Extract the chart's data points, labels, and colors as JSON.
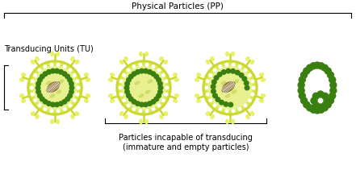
{
  "bg_color": "#ffffff",
  "title_pp": "Physical Particles (PP)",
  "title_tu": "Transducing Units (TU)",
  "label_incapable": "Particles incapable of transducing\n(immature and empty particles)",
  "color_envelope": "#ccd830",
  "color_envelope_inner": "#d8e850",
  "color_cytoplasm": "#e8f090",
  "color_capsid_dots": "#3a8010",
  "color_matrix_dots": "#ffffff",
  "color_rna": "#806020",
  "color_spike_body": "#ccd830",
  "color_spike_tip": "#e8f060",
  "color_bead": "#3a8010",
  "fig_width": 4.41,
  "fig_height": 2.21,
  "dpi": 100
}
